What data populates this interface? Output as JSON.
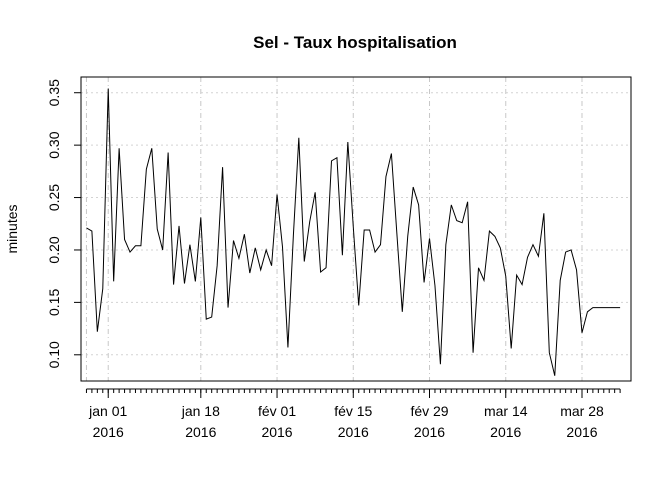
{
  "chart_data": {
    "type": "line",
    "title": "Sel - Taux hospitalisation",
    "xlabel": "",
    "ylabel": "minutes",
    "ylim": [
      0.075,
      0.365
    ],
    "xlim": [
      "2015-12-27",
      "2016-04-06"
    ],
    "grid": true,
    "y_ticks": [
      0.1,
      0.15,
      0.2,
      0.25,
      0.3,
      0.35
    ],
    "y_tick_labels": [
      "0.10",
      "0.15",
      "0.20",
      "0.25",
      "0.30",
      "0.35"
    ],
    "x_major_ticks": [
      {
        "date": "2016-01-01",
        "label1": "jan 01",
        "label2": "2016"
      },
      {
        "date": "2016-01-18",
        "label1": "jan 18",
        "label2": "2016"
      },
      {
        "date": "2016-02-01",
        "label1": "fév 01",
        "label2": "2016"
      },
      {
        "date": "2016-02-15",
        "label1": "fév 15",
        "label2": "2016"
      },
      {
        "date": "2016-02-29",
        "label1": "fév 29",
        "label2": "2016"
      },
      {
        "date": "2016-03-14",
        "label1": "mar 14",
        "label2": "2016"
      },
      {
        "date": "2016-03-28",
        "label1": "mar 28",
        "label2": "2016"
      }
    ],
    "x_grid_dates": [
      "2015-12-28",
      "2016-01-01",
      "2016-01-18",
      "2016-02-01",
      "2016-02-15",
      "2016-02-29",
      "2016-03-14",
      "2016-03-28"
    ],
    "series": [
      {
        "name": "",
        "x": [
          "2015-12-28",
          "2015-12-29",
          "2015-12-30",
          "2015-12-31",
          "2016-01-01",
          "2016-01-02",
          "2016-01-03",
          "2016-01-04",
          "2016-01-05",
          "2016-01-06",
          "2016-01-07",
          "2016-01-08",
          "2016-01-09",
          "2016-01-10",
          "2016-01-11",
          "2016-01-12",
          "2016-01-13",
          "2016-01-14",
          "2016-01-15",
          "2016-01-16",
          "2016-01-17",
          "2016-01-18",
          "2016-01-19",
          "2016-01-20",
          "2016-01-21",
          "2016-01-22",
          "2016-01-23",
          "2016-01-24",
          "2016-01-25",
          "2016-01-26",
          "2016-01-27",
          "2016-01-28",
          "2016-01-29",
          "2016-01-30",
          "2016-01-31",
          "2016-02-01",
          "2016-02-02",
          "2016-02-03",
          "2016-02-04",
          "2016-02-05",
          "2016-02-06",
          "2016-02-07",
          "2016-02-08",
          "2016-02-09",
          "2016-02-10",
          "2016-02-11",
          "2016-02-12",
          "2016-02-13",
          "2016-02-14",
          "2016-02-15",
          "2016-02-16",
          "2016-02-17",
          "2016-02-18",
          "2016-02-19",
          "2016-02-20",
          "2016-02-21",
          "2016-02-22",
          "2016-02-23",
          "2016-02-24",
          "2016-02-25",
          "2016-02-26",
          "2016-02-27",
          "2016-02-28",
          "2016-02-29",
          "2016-03-01",
          "2016-03-02",
          "2016-03-03",
          "2016-03-04",
          "2016-03-05",
          "2016-03-06",
          "2016-03-07",
          "2016-03-08",
          "2016-03-09",
          "2016-03-10",
          "2016-03-11",
          "2016-03-12",
          "2016-03-13",
          "2016-03-14",
          "2016-03-15",
          "2016-03-16",
          "2016-03-17",
          "2016-03-18",
          "2016-03-19",
          "2016-03-20",
          "2016-03-21",
          "2016-03-22",
          "2016-03-23",
          "2016-03-24",
          "2016-03-25",
          "2016-03-26",
          "2016-03-27",
          "2016-03-28",
          "2016-03-29",
          "2016-03-30",
          "2016-03-31",
          "2016-04-01",
          "2016-04-02",
          "2016-04-03",
          "2016-04-04"
        ],
        "values": [
          0.221,
          0.218,
          0.122,
          0.163,
          0.354,
          0.17,
          0.297,
          0.21,
          0.198,
          0.204,
          0.204,
          0.277,
          0.297,
          0.22,
          0.2,
          0.293,
          0.167,
          0.223,
          0.168,
          0.205,
          0.17,
          0.231,
          0.134,
          0.136,
          0.185,
          0.279,
          0.145,
          0.209,
          0.192,
          0.215,
          0.178,
          0.202,
          0.181,
          0.2,
          0.185,
          0.253,
          0.203,
          0.107,
          0.214,
          0.307,
          0.189,
          0.227,
          0.255,
          0.179,
          0.183,
          0.285,
          0.288,
          0.195,
          0.303,
          0.222,
          0.147,
          0.219,
          0.219,
          0.198,
          0.205,
          0.27,
          0.292,
          0.216,
          0.141,
          0.213,
          0.26,
          0.243,
          0.169,
          0.211,
          0.166,
          0.091,
          0.205,
          0.243,
          0.228,
          0.226,
          0.246,
          0.102,
          0.183,
          0.171,
          0.218,
          0.213,
          0.202,
          0.175,
          0.106,
          0.176,
          0.167,
          0.193,
          0.205,
          0.194,
          0.235,
          0.102,
          0.08,
          0.171,
          0.198,
          0.2,
          0.181,
          0.121,
          0.141,
          0.145,
          0.145,
          0.145,
          0.145,
          0.145,
          0.145
        ]
      }
    ]
  }
}
